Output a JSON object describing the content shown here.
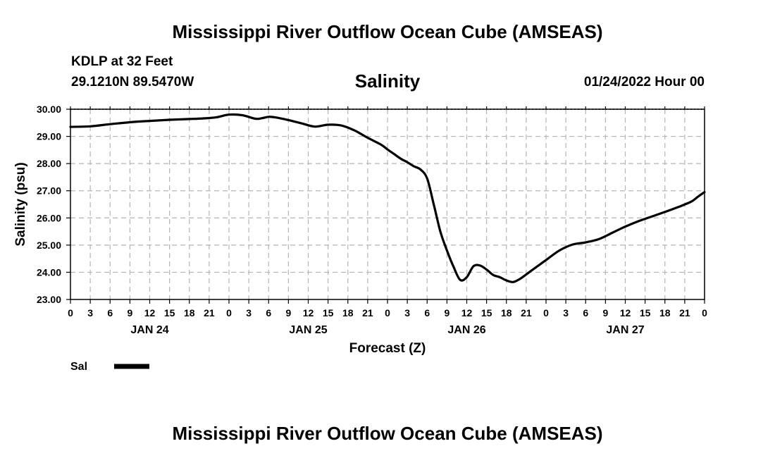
{
  "header": {
    "title": "Mississippi River Outflow Ocean Cube (AMSEAS)",
    "station": "KDLP at 32 Feet",
    "location": "29.1210N  89.5470W",
    "date": "01/24/2022 Hour 00"
  },
  "footer": {
    "title": "Mississippi River Outflow Ocean Cube (AMSEAS)"
  },
  "chart_data": {
    "type": "line",
    "title": "Salinity",
    "xlabel": "Forecast (Z)",
    "ylabel": "Salinity (psu)",
    "ylim": [
      23,
      30
    ],
    "xlim": [
      0,
      96
    ],
    "grid": true,
    "y_ticks": [
      "23.00",
      "24.00",
      "25.00",
      "26.00",
      "27.00",
      "28.00",
      "29.00",
      "30.00"
    ],
    "x_tick_labels": [
      "0",
      "3",
      "6",
      "9",
      "12",
      "15",
      "18",
      "21",
      "0",
      "3",
      "6",
      "9",
      "12",
      "15",
      "18",
      "21",
      "0",
      "3",
      "6",
      "9",
      "12",
      "15",
      "18",
      "21",
      "0",
      "3",
      "6",
      "9",
      "12",
      "15",
      "18",
      "21",
      "0"
    ],
    "day_labels": [
      "JAN 24",
      "JAN 25",
      "JAN 26",
      "JAN 27"
    ],
    "legend": {
      "label": "Sal",
      "position": "bottom-left"
    },
    "series": [
      {
        "name": "Sal",
        "x": [
          0,
          3,
          6,
          9,
          12,
          15,
          18,
          20,
          22,
          24,
          26,
          28,
          29,
          30,
          31,
          33,
          35,
          37,
          39,
          41,
          43,
          45,
          47,
          48,
          49,
          50,
          51,
          52,
          53,
          54,
          55,
          56,
          57,
          58,
          59,
          60,
          61,
          62,
          63,
          64,
          65,
          66,
          67,
          68,
          69,
          70,
          72,
          74,
          76,
          78,
          80,
          82,
          84,
          86,
          88,
          90,
          92,
          94,
          95,
          96
        ],
        "values": [
          29.35,
          29.37,
          29.45,
          29.52,
          29.57,
          29.61,
          29.64,
          29.66,
          29.7,
          29.8,
          29.78,
          29.65,
          29.67,
          29.72,
          29.7,
          29.6,
          29.48,
          29.36,
          29.43,
          29.4,
          29.22,
          28.95,
          28.7,
          28.52,
          28.35,
          28.18,
          28.05,
          27.9,
          27.78,
          27.45,
          26.5,
          25.5,
          24.8,
          24.2,
          23.72,
          23.82,
          24.22,
          24.25,
          24.1,
          23.9,
          23.82,
          23.7,
          23.64,
          23.75,
          23.92,
          24.1,
          24.45,
          24.8,
          25.02,
          25.1,
          25.22,
          25.45,
          25.68,
          25.88,
          26.05,
          26.22,
          26.4,
          26.6,
          26.78,
          26.95
        ]
      }
    ]
  }
}
